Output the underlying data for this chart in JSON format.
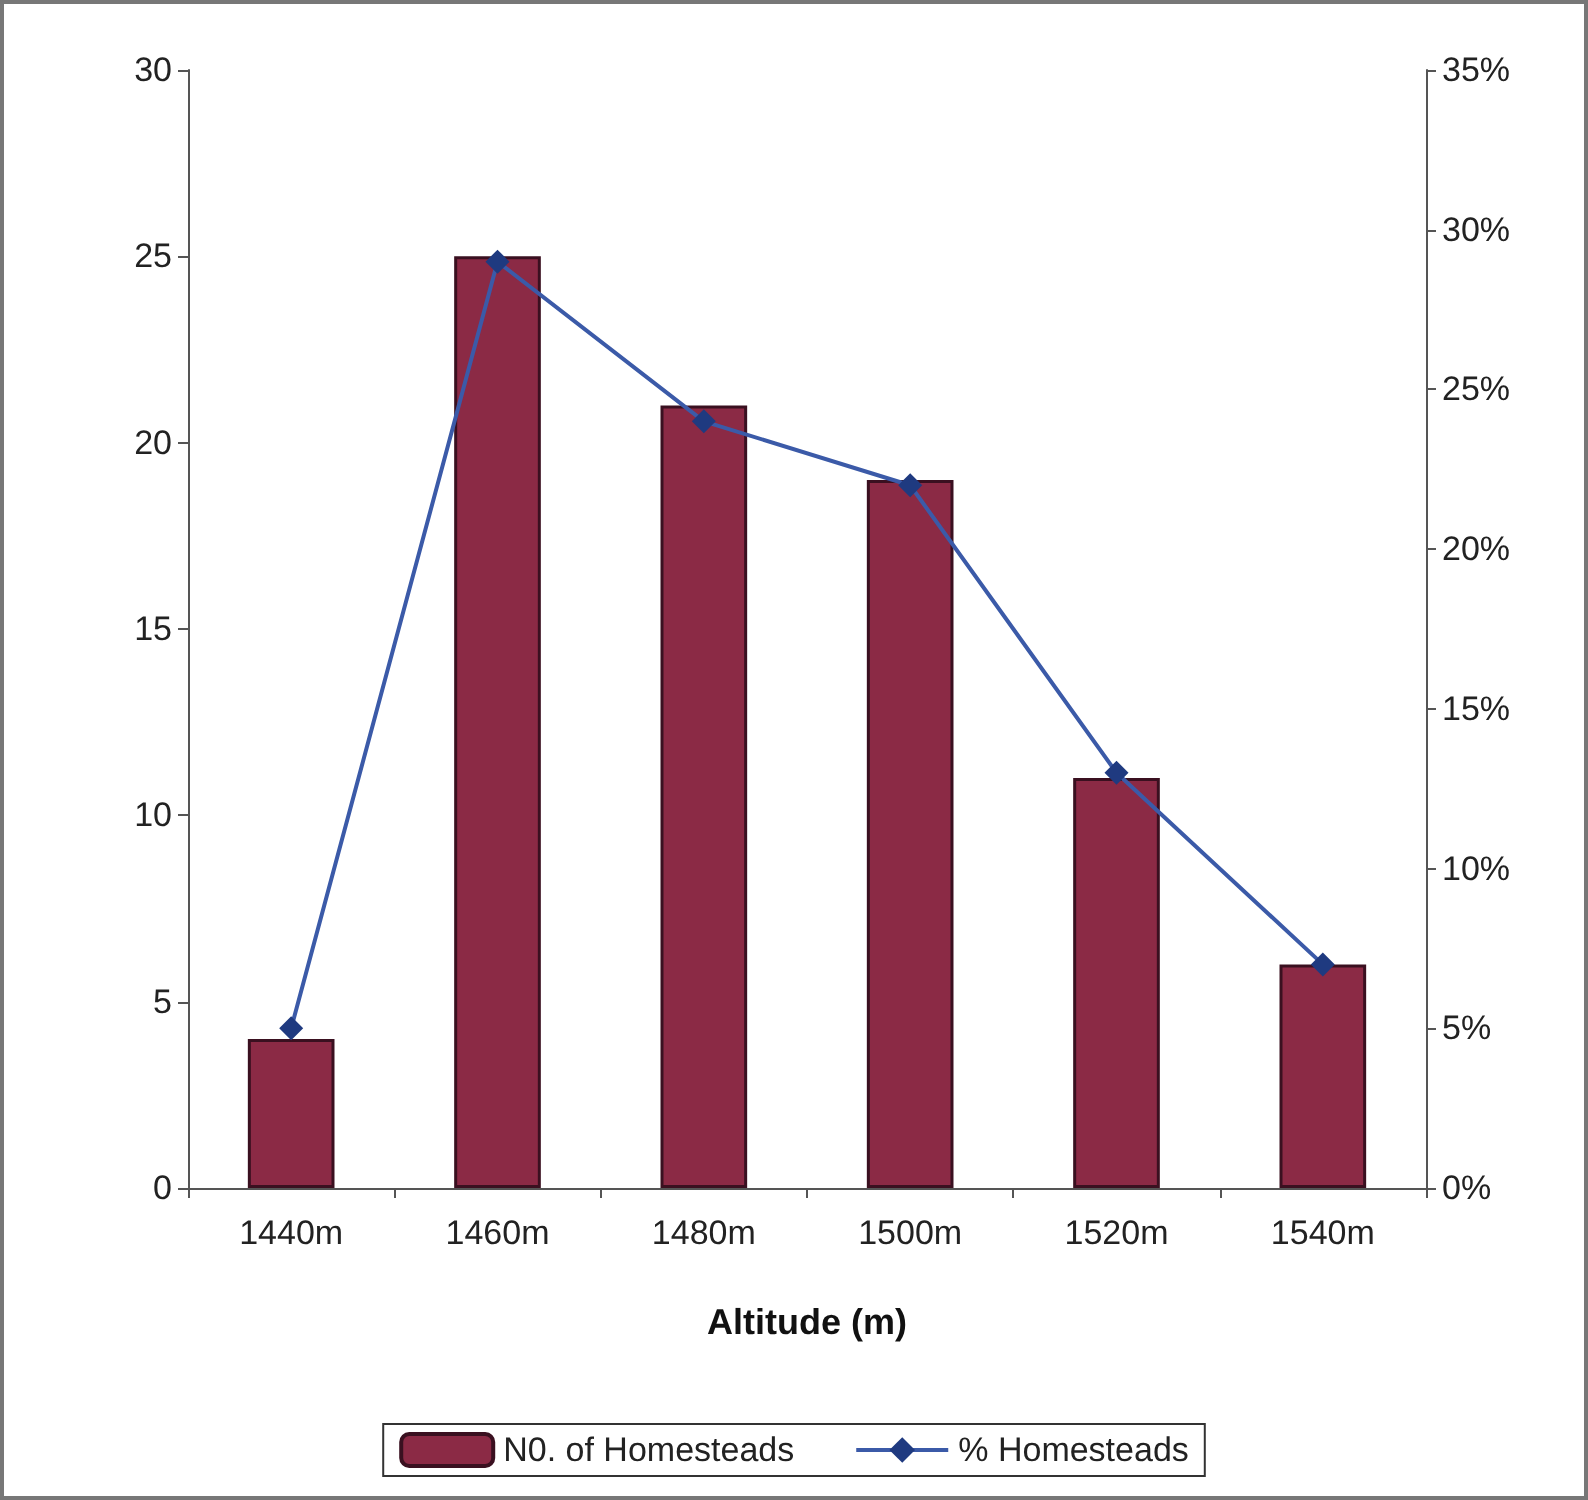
{
  "chart_data": {
    "type": "bar",
    "xlabel": "Altitude (m)",
    "categories": [
      "1440m",
      "1460m",
      "1480m",
      "1500m",
      "1520m",
      "1540m"
    ],
    "series": [
      {
        "name": "N0. of Homesteads",
        "color": "#8b2a45",
        "values": [
          4,
          25,
          21,
          19,
          11,
          6
        ]
      },
      {
        "name": "% Homesteads",
        "type": "line",
        "axis": "y2",
        "color": "#3b5aa8",
        "marker": "diamond",
        "values": [
          5,
          29,
          24,
          22,
          13,
          7
        ]
      }
    ],
    "ylim": [
      0,
      30
    ],
    "yticks": [
      0,
      5,
      10,
      15,
      20,
      25,
      30
    ],
    "y2lim": [
      0,
      35
    ],
    "y2ticks": [
      {
        "value": 0,
        "label": "0%"
      },
      {
        "value": 5,
        "label": "5%"
      },
      {
        "value": 10,
        "label": "10%"
      },
      {
        "value": 15,
        "label": "15%"
      },
      {
        "value": 20,
        "label": "20%"
      },
      {
        "value": 25,
        "label": "25%"
      },
      {
        "value": 30,
        "label": "30%"
      },
      {
        "value": 35,
        "label": "35%"
      }
    ],
    "grid": false,
    "legend": "bottom"
  }
}
